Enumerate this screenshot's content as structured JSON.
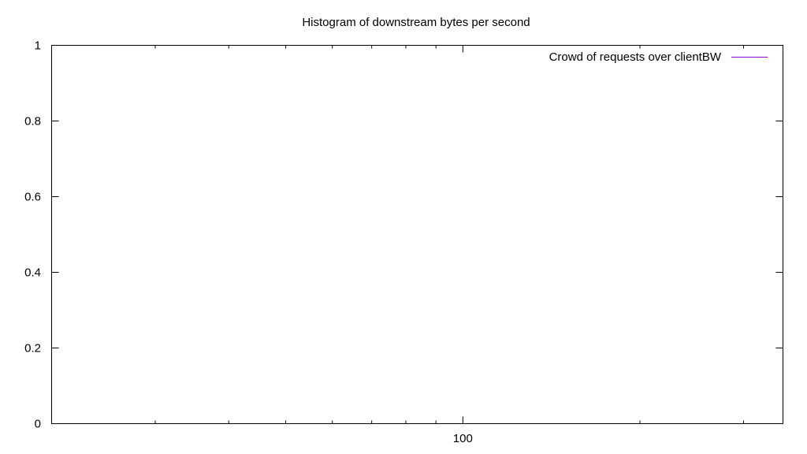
{
  "chart_data": {
    "type": "line",
    "title": "Histogram of downstream bytes per second",
    "xlabel": "",
    "ylabel": "",
    "x_scale": "log",
    "xlim": [
      20,
      350
    ],
    "ylim": [
      0,
      1
    ],
    "x_major_ticks": [
      {
        "value": 100,
        "label": "100"
      }
    ],
    "x_minor_ticks": [
      30,
      40,
      50,
      60,
      70,
      80,
      90,
      200,
      300
    ],
    "y_ticks": [
      {
        "value": 0,
        "label": "0"
      },
      {
        "value": 0.2,
        "label": "0.2"
      },
      {
        "value": 0.4,
        "label": "0.4"
      },
      {
        "value": 0.6,
        "label": "0.6"
      },
      {
        "value": 0.8,
        "label": "0.8"
      },
      {
        "value": 1,
        "label": "1"
      }
    ],
    "grid": false,
    "legend_position": "top-right",
    "series": [
      {
        "name": "Crowd of requests over clientBW",
        "color": "#9400d3",
        "points": []
      }
    ]
  }
}
